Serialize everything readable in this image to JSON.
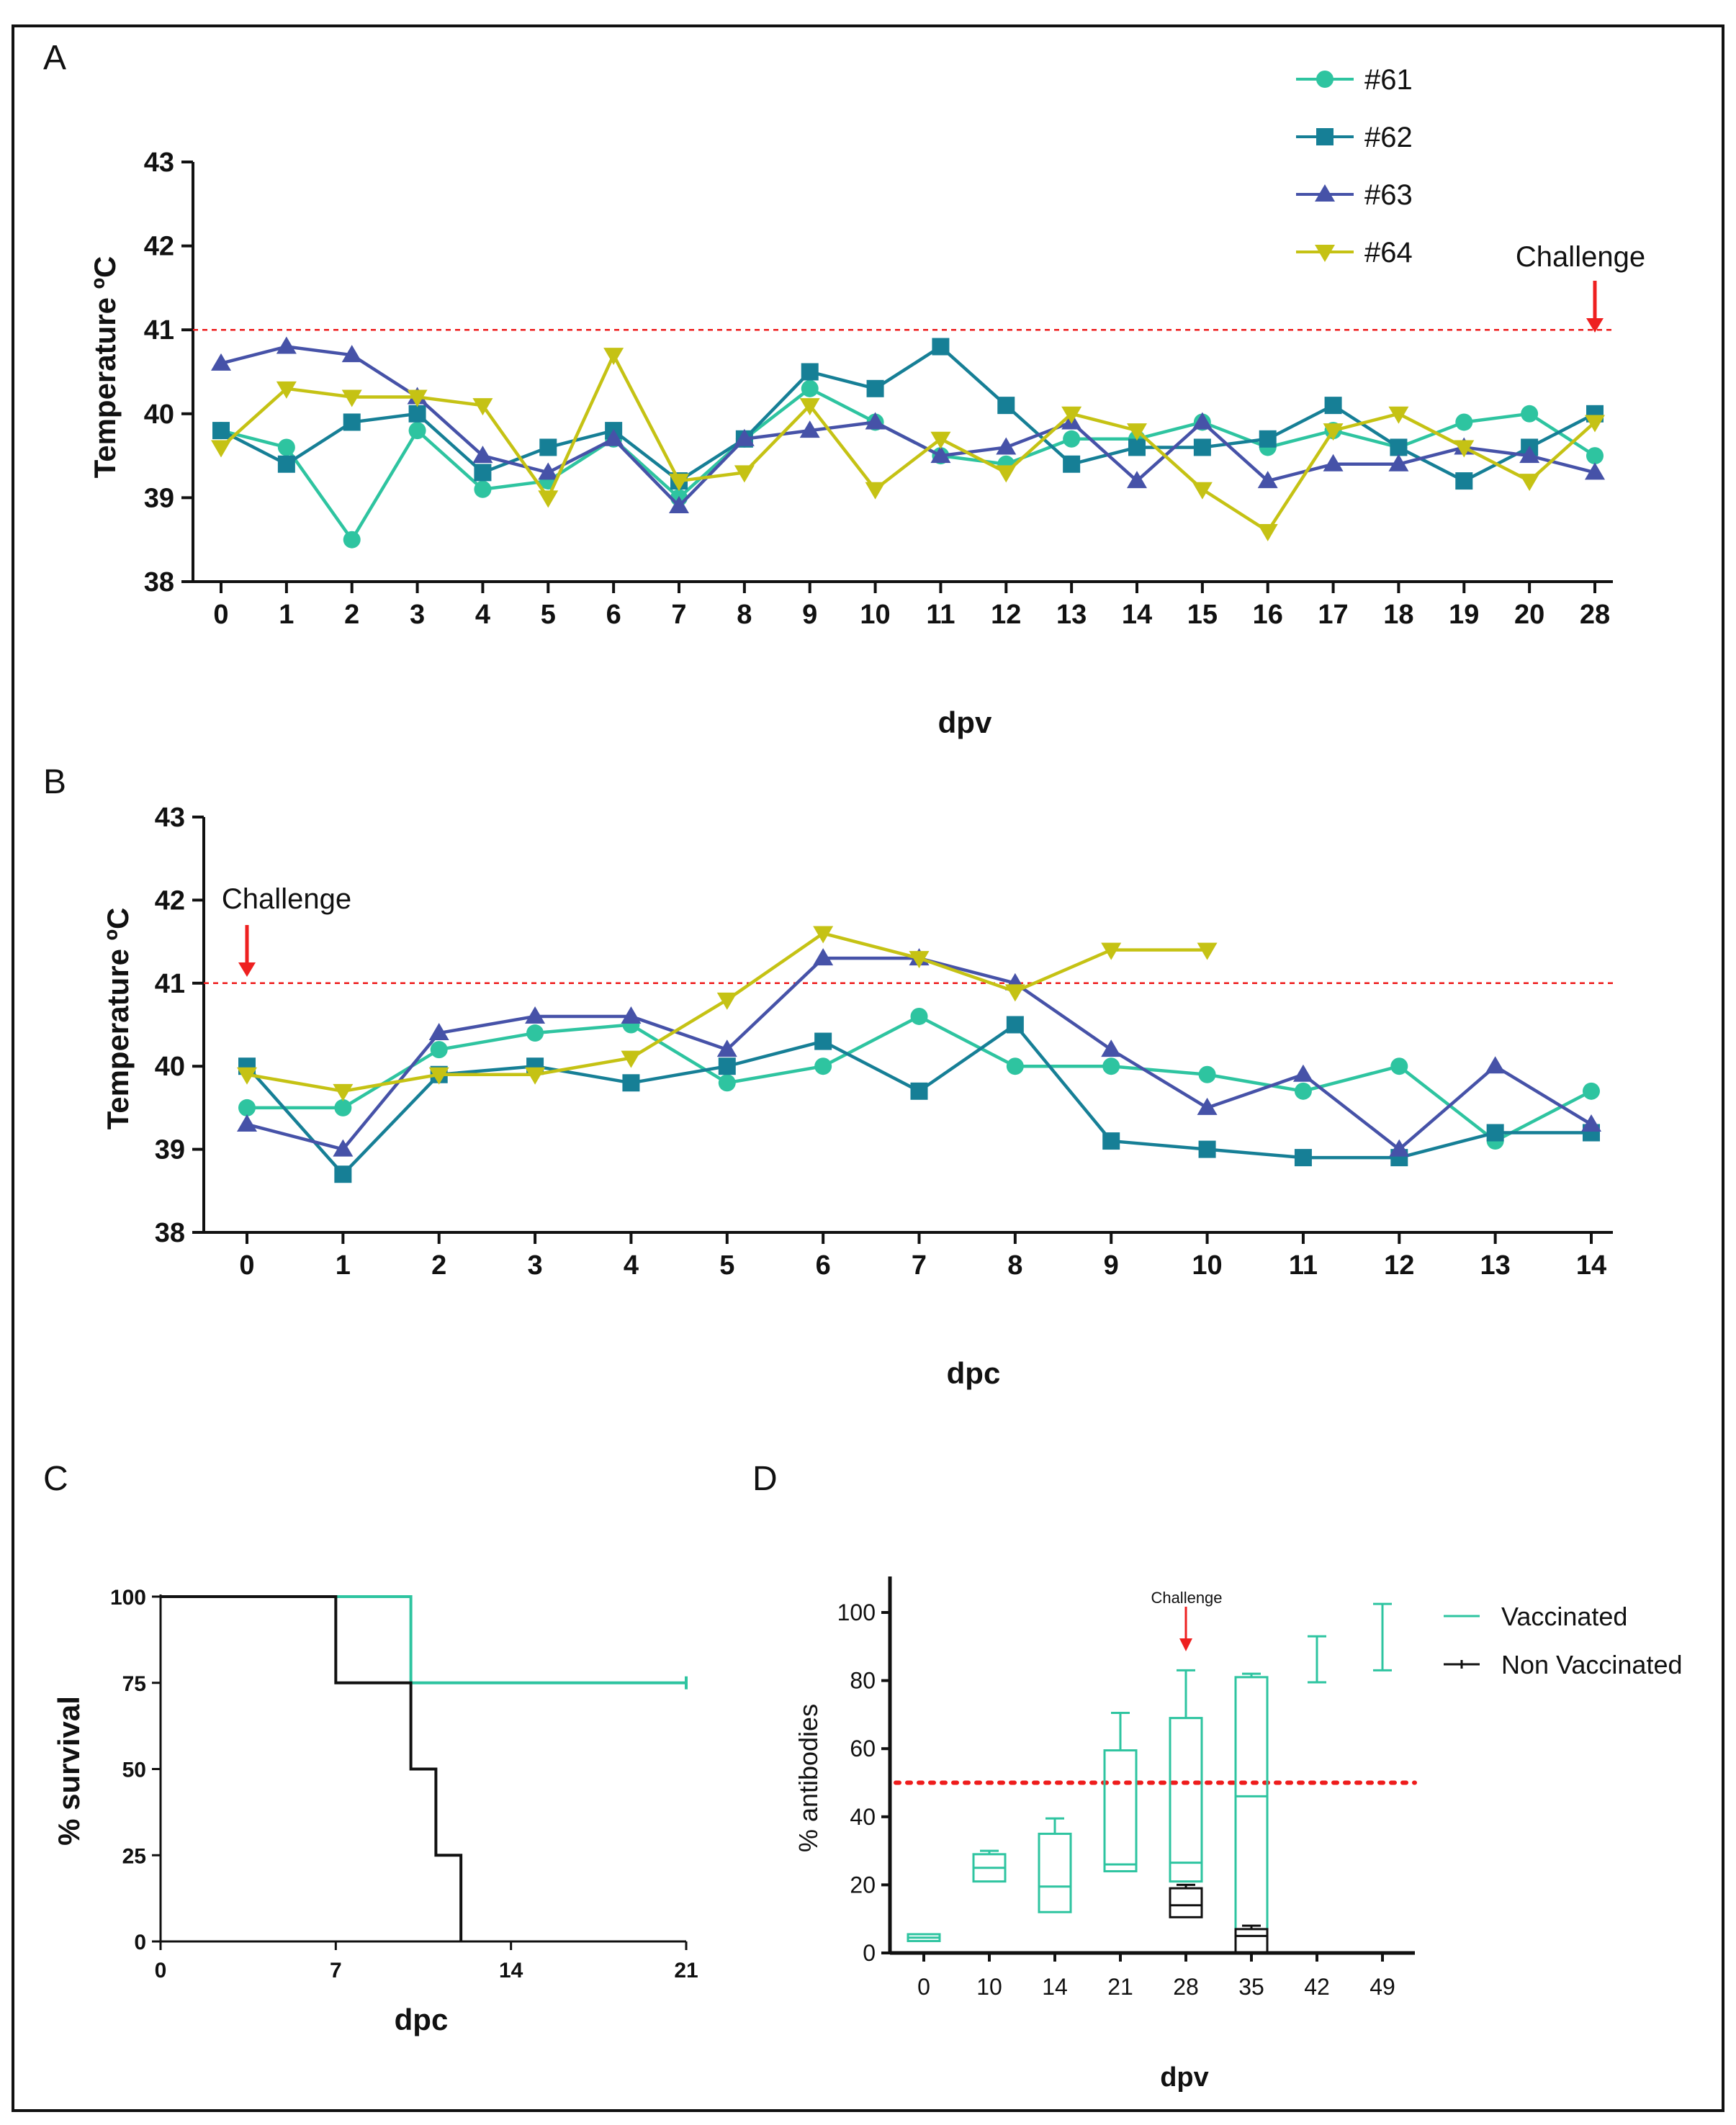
{
  "colors": {
    "s61": "#2ec4a0",
    "s62": "#167f96",
    "s63": "#4652a8",
    "s64": "#c5c214",
    "threshold": "#ee1c1c",
    "arrow": "#ee2020",
    "vaccinated": "#2ec4a0",
    "nonvaccinated": "#111111",
    "axis": "#111111"
  },
  "chart_data": [
    {
      "panel": "A",
      "type": "line",
      "title": "",
      "xlabel": "dpv",
      "ylabel": "Temperature ºC",
      "categories": [
        "0",
        "1",
        "2",
        "3",
        "4",
        "5",
        "6",
        "7",
        "8",
        "9",
        "10",
        "11",
        "12",
        "13",
        "14",
        "15",
        "16",
        "17",
        "18",
        "19",
        "20",
        "28"
      ],
      "ylim": [
        38,
        43
      ],
      "yticks": [
        "38",
        "39",
        "40",
        "41",
        "42",
        "43"
      ],
      "threshold": 41,
      "annotation": {
        "text": "Challenge",
        "at_category": "28"
      },
      "legend_position": "top-right",
      "series": [
        {
          "name": "#61",
          "marker": "circle",
          "values": [
            39.8,
            39.6,
            38.5,
            39.8,
            39.1,
            39.2,
            39.7,
            39.0,
            39.7,
            40.3,
            39.9,
            39.5,
            39.4,
            39.7,
            39.7,
            39.9,
            39.6,
            39.8,
            39.6,
            39.9,
            40.0,
            39.5
          ]
        },
        {
          "name": "#62",
          "marker": "square",
          "values": [
            39.8,
            39.4,
            39.9,
            40.0,
            39.3,
            39.6,
            39.8,
            39.2,
            39.7,
            40.5,
            40.3,
            40.8,
            40.1,
            39.4,
            39.6,
            39.6,
            39.7,
            40.1,
            39.6,
            39.2,
            39.6,
            40.0
          ]
        },
        {
          "name": "#63",
          "marker": "triangle-up",
          "values": [
            40.6,
            40.8,
            40.7,
            40.2,
            39.5,
            39.3,
            39.7,
            38.9,
            39.7,
            39.8,
            39.9,
            39.5,
            39.6,
            39.9,
            39.2,
            39.9,
            39.2,
            39.4,
            39.4,
            39.6,
            39.5,
            39.3
          ]
        },
        {
          "name": "#64",
          "marker": "triangle-down",
          "values": [
            39.6,
            40.3,
            40.2,
            40.2,
            40.1,
            39.0,
            40.7,
            39.2,
            39.3,
            40.1,
            39.1,
            39.7,
            39.3,
            40.0,
            39.8,
            39.1,
            38.6,
            39.8,
            40.0,
            39.6,
            39.2,
            39.9
          ]
        }
      ]
    },
    {
      "panel": "B",
      "type": "line",
      "title": "",
      "xlabel": "dpc",
      "ylabel": "Temperature ºC",
      "categories": [
        "0",
        "1",
        "2",
        "3",
        "4",
        "5",
        "6",
        "7",
        "8",
        "9",
        "10",
        "11",
        "12",
        "13",
        "14"
      ],
      "ylim": [
        38,
        43
      ],
      "yticks": [
        "38",
        "39",
        "40",
        "41",
        "42",
        "43"
      ],
      "threshold": 41,
      "annotation": {
        "text": "Challenge",
        "at_category": "0"
      },
      "series": [
        {
          "name": "#61",
          "marker": "circle",
          "values": [
            39.5,
            39.5,
            40.2,
            40.4,
            40.5,
            39.8,
            40.0,
            40.6,
            40.0,
            40.0,
            39.9,
            39.7,
            40.0,
            39.1,
            39.7
          ]
        },
        {
          "name": "#62",
          "marker": "square",
          "values": [
            40.0,
            38.7,
            39.9,
            40.0,
            39.8,
            40.0,
            40.3,
            39.7,
            40.5,
            39.1,
            39.0,
            38.9,
            38.9,
            39.2,
            39.2
          ]
        },
        {
          "name": "#63",
          "marker": "triangle-up",
          "values": [
            39.3,
            39.0,
            40.4,
            40.6,
            40.6,
            40.2,
            41.3,
            41.3,
            41.0,
            40.2,
            39.5,
            39.9,
            39.0,
            40.0,
            39.3
          ]
        },
        {
          "name": "#64",
          "marker": "triangle-down",
          "values": [
            39.9,
            39.7,
            39.9,
            39.9,
            40.1,
            40.8,
            41.6,
            41.3,
            40.9,
            41.4,
            41.4,
            null,
            null,
            null,
            null
          ]
        }
      ]
    },
    {
      "panel": "C",
      "type": "line",
      "subtype": "survival-step",
      "title": "",
      "xlabel": "dpc",
      "ylabel": "% survival",
      "xlim": [
        0,
        21
      ],
      "ylim": [
        0,
        100
      ],
      "xticks": [
        "0",
        "7",
        "14",
        "21"
      ],
      "yticks": [
        "0",
        "25",
        "50",
        "75",
        "100"
      ],
      "series": [
        {
          "name": "Vaccinated",
          "x": [
            0,
            10,
            10,
            21
          ],
          "y": [
            100,
            100,
            75,
            75
          ]
        },
        {
          "name": "Non Vaccinated",
          "x": [
            0,
            7,
            7,
            10,
            10,
            11,
            11,
            12,
            12
          ],
          "y": [
            100,
            100,
            75,
            75,
            50,
            50,
            25,
            25,
            0
          ]
        }
      ]
    },
    {
      "panel": "D",
      "type": "box",
      "title": "",
      "xlabel": "dpv",
      "ylabel": "% antibodies",
      "categories": [
        "0",
        "10",
        "14",
        "21",
        "28",
        "35",
        "42",
        "49"
      ],
      "ylim": [
        0,
        110
      ],
      "yticks": [
        "0",
        "20",
        "40",
        "60",
        "80",
        "100"
      ],
      "threshold": 50,
      "annotation": {
        "text": "Challenge",
        "at_category": "28"
      },
      "legend_position": "top-right",
      "series": [
        {
          "name": "Vaccinated",
          "boxes": [
            {
              "cat": "0",
              "min": 3.5,
              "q1": 3.5,
              "median": 4.5,
              "q3": 5.5,
              "max": 5.5
            },
            {
              "cat": "10",
              "min": 21,
              "q1": 21,
              "median": 25,
              "q3": 29,
              "max": 30
            },
            {
              "cat": "14",
              "min": 12,
              "q1": 12,
              "median": 19.5,
              "q3": 35,
              "max": 39.5
            },
            {
              "cat": "21",
              "min": 24,
              "q1": 24,
              "median": 26,
              "q3": 59.5,
              "max": 70.5
            },
            {
              "cat": "28",
              "min": 20,
              "q1": 21,
              "median": 26.5,
              "q3": 69,
              "max": 83
            },
            {
              "cat": "35",
              "min": 0,
              "q1": 0,
              "median": 46,
              "q3": 81,
              "max": 82
            },
            {
              "cat": "42",
              "min": 79.5,
              "q1": null,
              "median": null,
              "q3": null,
              "max": 93
            },
            {
              "cat": "49",
              "min": 83,
              "q1": null,
              "median": null,
              "q3": null,
              "max": 102.5
            }
          ]
        },
        {
          "name": "Non Vaccinated",
          "boxes": [
            {
              "cat": "28",
              "min": 10.5,
              "q1": 10.5,
              "median": 14,
              "q3": 19,
              "max": 20
            },
            {
              "cat": "35",
              "min": 0,
              "q1": 0,
              "median": 5,
              "q3": 7,
              "max": 8
            }
          ]
        }
      ]
    }
  ],
  "panels": {
    "A": {
      "label": "A"
    },
    "B": {
      "label": "B"
    },
    "C": {
      "label": "C"
    },
    "D": {
      "label": "D"
    }
  }
}
